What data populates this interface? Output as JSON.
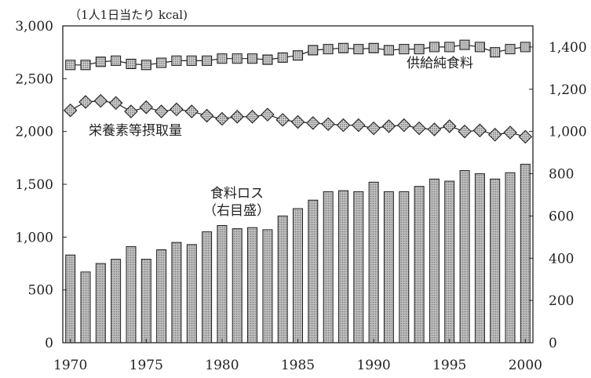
{
  "chart_data": {
    "type": "bar+line",
    "unit_label": "（1人1日当たり kcal)",
    "x": [
      1970,
      1971,
      1972,
      1973,
      1974,
      1975,
      1976,
      1977,
      1978,
      1979,
      1980,
      1981,
      1982,
      1983,
      1984,
      1985,
      1986,
      1987,
      1988,
      1989,
      1990,
      1991,
      1992,
      1993,
      1994,
      1995,
      1996,
      1997,
      1998,
      1999,
      2000
    ],
    "x_ticks": [
      1970,
      1975,
      1980,
      1985,
      1990,
      1995,
      2000
    ],
    "x_tick_labels": [
      "1970",
      "1975",
      "1980",
      "1985",
      "1990",
      "1995",
      "2000"
    ],
    "y_left": {
      "lim": [
        0,
        3000
      ],
      "ticks": [
        0,
        500,
        1000,
        1500,
        2000,
        2500,
        3000
      ],
      "tick_labels": [
        "0",
        "500",
        "1,000",
        "1,500",
        "2,000",
        "2,500",
        "3,000"
      ]
    },
    "y_right": {
      "lim": [
        0,
        1500
      ],
      "ticks": [
        0,
        200,
        400,
        600,
        800,
        1000,
        1200,
        1400
      ],
      "tick_labels": [
        "0",
        "200",
        "400",
        "600",
        "800",
        "1,000",
        "1,200",
        "1,400"
      ]
    },
    "grid": false,
    "series": [
      {
        "name": "供給純食料",
        "type": "line",
        "marker": "square",
        "axis": "left",
        "values": [
          2630,
          2630,
          2660,
          2670,
          2640,
          2630,
          2650,
          2670,
          2670,
          2670,
          2690,
          2690,
          2690,
          2680,
          2700,
          2720,
          2770,
          2780,
          2790,
          2780,
          2790,
          2770,
          2780,
          2780,
          2800,
          2800,
          2820,
          2800,
          2750,
          2780,
          2800
        ]
      },
      {
        "name": "栄養素等摂取量",
        "type": "line",
        "marker": "diamond",
        "axis": "left",
        "values": [
          2200,
          2280,
          2290,
          2270,
          2190,
          2230,
          2190,
          2210,
          2190,
          2150,
          2120,
          2140,
          2140,
          2160,
          2110,
          2090,
          2080,
          2070,
          2060,
          2060,
          2030,
          2050,
          2060,
          2030,
          2020,
          2050,
          2000,
          2010,
          1970,
          1990,
          1950
        ]
      },
      {
        "name": "食料ロス（右目盛）",
        "type": "bar",
        "axis": "right",
        "values": [
          415,
          335,
          375,
          395,
          455,
          395,
          440,
          475,
          465,
          525,
          555,
          540,
          545,
          535,
          600,
          635,
          675,
          715,
          720,
          715,
          760,
          715,
          715,
          740,
          775,
          765,
          815,
          800,
          775,
          805,
          845
        ]
      }
    ],
    "annotations": {
      "supply": "供給純食料",
      "intake": "栄養素等摂取量",
      "loss_line1": "食料ロス",
      "loss_line2": "（右目盛）"
    }
  }
}
